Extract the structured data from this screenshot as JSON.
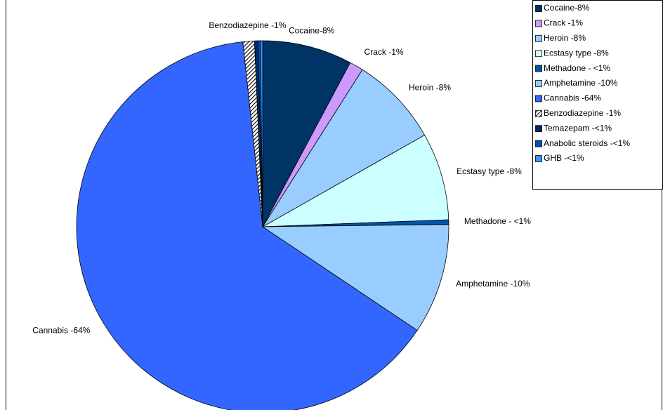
{
  "chart_data": {
    "type": "pie",
    "categories": [
      "Cocaine-8%",
      "Crack -1%",
      "Heroin -8%",
      "Ecstasy type -8%",
      "Methadone - <1%",
      "Amphetamine -10%",
      "Cannabis -64%",
      "Benzodiazepine -1%",
      "Temazepam -<1%",
      "Anabolic steroids -<1%",
      "GHB -<1%"
    ],
    "values": [
      7.8,
      1.2,
      7.8,
      7.6,
      0.4,
      9.6,
      63.9,
      1.0,
      0.3,
      0.2,
      0.2
    ],
    "colors": [
      "#003366",
      "#cc99ff",
      "#99ccff",
      "#ccffff",
      "#0055aa",
      "#99ccff",
      "#3366ff",
      "#ffffff",
      "#002a66",
      "#0050b0",
      "#3399ff"
    ],
    "patterns": [
      null,
      null,
      null,
      null,
      null,
      null,
      null,
      "diagonal",
      null,
      null,
      null
    ],
    "legend": "top-right"
  }
}
